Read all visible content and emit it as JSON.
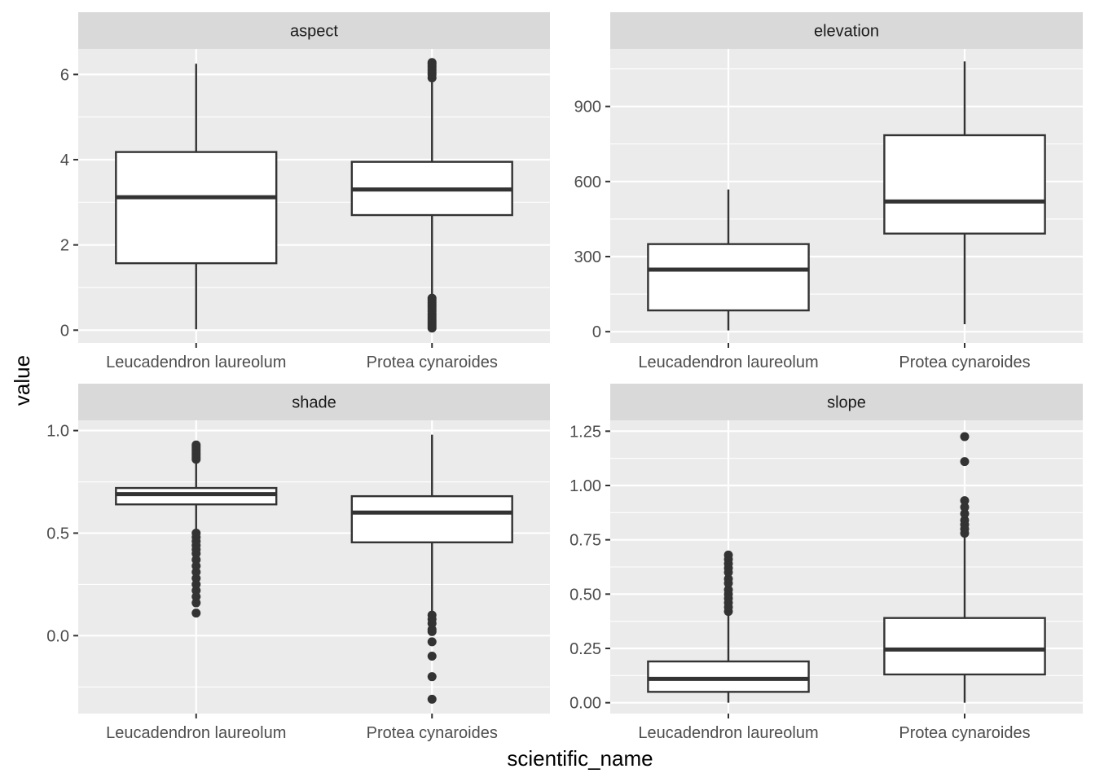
{
  "chart_data": {
    "type": "boxplot",
    "facet_layout": "2x2",
    "scales": "free_y",
    "xlabel": "scientific_name",
    "ylabel": "value",
    "categories": [
      "Leucadendron laureolum",
      "Protea cynaroides"
    ],
    "grid": true,
    "colors": {
      "panel_background": "#ebebeb",
      "strip_background": "#d9d9d9",
      "box_fill": "#ffffff",
      "box_line": "#333333",
      "outlier": "#333333"
    },
    "panels": [
      {
        "title": "aspect",
        "ylim": [
          -0.3,
          6.6
        ],
        "yticks": [
          0,
          2,
          4,
          6
        ],
        "ytick_labels": [
          "0",
          "2",
          "4",
          "6"
        ],
        "boxes": [
          {
            "category": "Leucadendron laureolum",
            "whisker_low": 0.02,
            "q1": 1.57,
            "median": 3.12,
            "q3": 4.18,
            "whisker_high": 6.25,
            "outliers": []
          },
          {
            "category": "Protea cynaroides",
            "whisker_low": 0.8,
            "q1": 2.7,
            "median": 3.3,
            "q3": 3.95,
            "whisker_high": 5.85,
            "outliers": [
              5.92,
              6.0,
              6.05,
              6.1,
              6.15,
              6.2,
              6.25,
              6.28,
              0.05,
              0.1,
              0.15,
              0.2,
              0.25,
              0.3,
              0.35,
              0.4,
              0.45,
              0.5,
              0.55,
              0.6,
              0.65,
              0.7,
              0.75
            ]
          }
        ]
      },
      {
        "title": "elevation",
        "ylim": [
          -45,
          1130
        ],
        "yticks": [
          0,
          300,
          600,
          900
        ],
        "ytick_labels": [
          "0",
          "300",
          "600",
          "900"
        ],
        "boxes": [
          {
            "category": "Leucadendron laureolum",
            "whisker_low": 5,
            "q1": 85,
            "median": 248,
            "q3": 350,
            "whisker_high": 568,
            "outliers": []
          },
          {
            "category": "Protea cynaroides",
            "whisker_low": 30,
            "q1": 392,
            "median": 520,
            "q3": 785,
            "whisker_high": 1080,
            "outliers": []
          }
        ]
      },
      {
        "title": "shade",
        "ylim": [
          -0.38,
          1.05
        ],
        "yticks": [
          0.0,
          0.5,
          1.0
        ],
        "ytick_labels": [
          "0.0",
          "0.5",
          "1.0"
        ],
        "boxes": [
          {
            "category": "Leucadendron laureolum",
            "whisker_low": 0.51,
            "q1": 0.64,
            "median": 0.69,
            "q3": 0.72,
            "whisker_high": 0.85,
            "outliers": [
              0.86,
              0.87,
              0.88,
              0.89,
              0.9,
              0.91,
              0.92,
              0.93,
              0.11,
              0.16,
              0.19,
              0.22,
              0.25,
              0.28,
              0.31,
              0.34,
              0.37,
              0.4,
              0.42,
              0.44,
              0.46,
              0.48,
              0.5
            ]
          },
          {
            "category": "Protea cynaroides",
            "whisker_low": 0.11,
            "q1": 0.455,
            "median": 0.6,
            "q3": 0.68,
            "whisker_high": 0.98,
            "outliers": [
              0.1,
              0.08,
              0.06,
              0.03,
              0.02,
              -0.03,
              -0.1,
              -0.2,
              -0.31
            ]
          }
        ]
      },
      {
        "title": "slope",
        "ylim": [
          -0.05,
          1.3
        ],
        "yticks": [
          0.0,
          0.25,
          0.5,
          0.75,
          1.0,
          1.25
        ],
        "ytick_labels": [
          "0.00",
          "0.25",
          "0.50",
          "0.75",
          "1.00",
          "1.25"
        ],
        "boxes": [
          {
            "category": "Leucadendron laureolum",
            "whisker_low": 0.0,
            "q1": 0.05,
            "median": 0.11,
            "q3": 0.19,
            "whisker_high": 0.41,
            "outliers": [
              0.42,
              0.44,
              0.46,
              0.48,
              0.5,
              0.52,
              0.55,
              0.57,
              0.6,
              0.62,
              0.64,
              0.66,
              0.68
            ]
          },
          {
            "category": "Protea cynaroides",
            "whisker_low": 0.0,
            "q1": 0.13,
            "median": 0.245,
            "q3": 0.39,
            "whisker_high": 0.77,
            "outliers": [
              0.78,
              0.8,
              0.82,
              0.84,
              0.87,
              0.9,
              0.93,
              1.11,
              1.225
            ]
          }
        ]
      }
    ]
  }
}
